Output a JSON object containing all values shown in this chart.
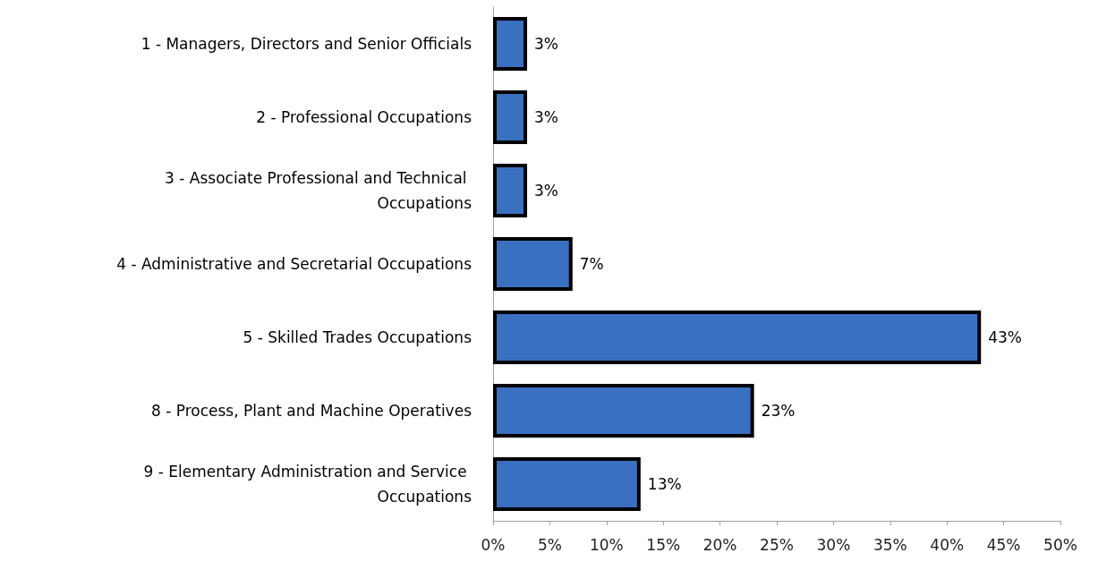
{
  "chart_data": {
    "type": "bar",
    "orientation": "horizontal",
    "categories": [
      "1 - Managers, Directors and Senior Officials",
      "2 - Professional Occupations",
      "3 - Associate Professional and Technical Occupations",
      "4 - Administrative and Secretarial Occupations",
      "5 - Skilled Trades Occupations",
      "8 - Process, Plant and Machine Operatives",
      "9 - Elementary Administration and Service Occupations"
    ],
    "values": [
      3,
      3,
      3,
      7,
      43,
      23,
      13
    ],
    "value_labels": [
      "3%",
      "3%",
      "3%",
      "7%",
      "43%",
      "23%",
      "13%"
    ],
    "color": "#3a70c0",
    "xlim": [
      0,
      50
    ],
    "xticks": [
      {
        "value": 0,
        "label": "0%"
      },
      {
        "value": 5,
        "label": "5%"
      },
      {
        "value": 10,
        "label": "10%"
      },
      {
        "value": 15,
        "label": "15%"
      },
      {
        "value": 20,
        "label": "20%"
      },
      {
        "value": 25,
        "label": "25%"
      },
      {
        "value": 30,
        "label": "30%"
      },
      {
        "value": 35,
        "label": "35%"
      },
      {
        "value": 40,
        "label": "40%"
      },
      {
        "value": 45,
        "label": "45%"
      },
      {
        "value": 50,
        "label": "50%"
      }
    ],
    "grid": false
  }
}
